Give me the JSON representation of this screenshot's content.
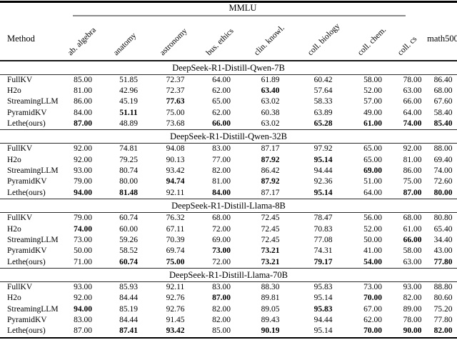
{
  "table": {
    "group_header": "MMLU",
    "method_header": "Method",
    "last_column_header": "math500",
    "mmlu_columns": [
      "ab. algebra",
      "anatomy",
      "astronomy",
      "bus. ethics",
      "clin. knowl.",
      "coll. biology",
      "coll. chem.",
      "coll. cs"
    ],
    "all_columns": [
      "Method",
      "ab. algebra",
      "anatomy",
      "astronomy",
      "bus. ethics",
      "clin. knowl.",
      "coll. biology",
      "coll. chem.",
      "coll. cs",
      "math500"
    ],
    "sections": [
      {
        "title": "DeepSeek-R1-Distill-Qwen-7B",
        "rows": [
          {
            "method": "FullKV",
            "values": [
              "85.00",
              "51.85",
              "72.37",
              "64.00",
              "61.89",
              "60.42",
              "58.00",
              "78.00",
              "86.40"
            ],
            "bold": [
              0,
              0,
              0,
              0,
              0,
              0,
              0,
              0,
              0
            ]
          },
          {
            "method": "H2o",
            "values": [
              "81.00",
              "42.96",
              "72.37",
              "62.00",
              "63.40",
              "57.64",
              "52.00",
              "63.00",
              "68.00"
            ],
            "bold": [
              0,
              0,
              0,
              0,
              1,
              0,
              0,
              0,
              0
            ]
          },
          {
            "method": "StreamingLLM",
            "values": [
              "86.00",
              "45.19",
              "77.63",
              "65.00",
              "63.02",
              "58.33",
              "57.00",
              "66.00",
              "67.60"
            ],
            "bold": [
              0,
              0,
              1,
              0,
              0,
              0,
              0,
              0,
              0
            ]
          },
          {
            "method": "PyramidKV",
            "values": [
              "84.00",
              "51.11",
              "75.00",
              "62.00",
              "60.38",
              "63.89",
              "49.00",
              "64.00",
              "58.40"
            ],
            "bold": [
              0,
              1,
              0,
              0,
              0,
              0,
              0,
              0,
              0
            ]
          },
          {
            "method": "Lethe(ours)",
            "values": [
              "87.00",
              "48.89",
              "73.68",
              "66.00",
              "63.02",
              "65.28",
              "61.00",
              "74.00",
              "85.40"
            ],
            "bold": [
              1,
              0,
              0,
              1,
              0,
              1,
              1,
              1,
              1
            ]
          }
        ]
      },
      {
        "title": "DeepSeek-R1-Distill-Qwen-32B",
        "rows": [
          {
            "method": "FullKV",
            "values": [
              "92.00",
              "74.81",
              "94.08",
              "83.00",
              "87.17",
              "97.92",
              "65.00",
              "92.00",
              "88.00"
            ],
            "bold": [
              0,
              0,
              0,
              0,
              0,
              0,
              0,
              0,
              0
            ]
          },
          {
            "method": "H2o",
            "values": [
              "92.00",
              "79.25",
              "90.13",
              "77.00",
              "87.92",
              "95.14",
              "65.00",
              "81.00",
              "69.40"
            ],
            "bold": [
              0,
              0,
              0,
              0,
              1,
              1,
              0,
              0,
              0
            ]
          },
          {
            "method": "StreamingLLM",
            "values": [
              "93.00",
              "80.74",
              "93.42",
              "82.00",
              "86.42",
              "94.44",
              "69.00",
              "86.00",
              "74.00"
            ],
            "bold": [
              0,
              0,
              0,
              0,
              0,
              0,
              1,
              0,
              0
            ]
          },
          {
            "method": "PyramidKV",
            "values": [
              "79.00",
              "80.00",
              "94.74",
              "81.00",
              "87.92",
              "92.36",
              "51.00",
              "75.00",
              "72.60"
            ],
            "bold": [
              0,
              0,
              1,
              0,
              1,
              0,
              0,
              0,
              0
            ]
          },
          {
            "method": "Lethe(ours)",
            "values": [
              "94.00",
              "81.48",
              "92.11",
              "84.00",
              "87.17",
              "95.14",
              "64.00",
              "87.00",
              "80.00"
            ],
            "bold": [
              1,
              1,
              0,
              1,
              0,
              1,
              0,
              1,
              1
            ]
          }
        ]
      },
      {
        "title": "DeepSeek-R1-Distill-Llama-8B",
        "rows": [
          {
            "method": "FullKV",
            "values": [
              "79.00",
              "60.74",
              "76.32",
              "68.00",
              "72.45",
              "78.47",
              "56.00",
              "68.00",
              "80.80"
            ],
            "bold": [
              0,
              0,
              0,
              0,
              0,
              0,
              0,
              0,
              0
            ]
          },
          {
            "method": "H2o",
            "values": [
              "74.00",
              "60.00",
              "67.11",
              "72.00",
              "72.45",
              "70.83",
              "52.00",
              "61.00",
              "65.40"
            ],
            "bold": [
              1,
              0,
              0,
              0,
              0,
              0,
              0,
              0,
              0
            ]
          },
          {
            "method": "StreamingLLM",
            "values": [
              "73.00",
              "59.26",
              "70.39",
              "69.00",
              "72.45",
              "77.08",
              "50.00",
              "66.00",
              "34.40"
            ],
            "bold": [
              0,
              0,
              0,
              0,
              0,
              0,
              0,
              1,
              0
            ]
          },
          {
            "method": "PyramidKV",
            "values": [
              "50.00",
              "58.52",
              "69.74",
              "73.00",
              "73.21",
              "74.31",
              "41.00",
              "58.00",
              "43.00"
            ],
            "bold": [
              0,
              0,
              0,
              1,
              1,
              0,
              0,
              0,
              0
            ]
          },
          {
            "method": "Lethe(ours)",
            "values": [
              "71.00",
              "60.74",
              "75.00",
              "72.00",
              "73.21",
              "79.17",
              "54.00",
              "63.00",
              "77.80"
            ],
            "bold": [
              0,
              1,
              1,
              0,
              1,
              1,
              1,
              0,
              1
            ]
          }
        ]
      },
      {
        "title": "DeepSeek-R1-Distill-Llama-70B",
        "rows": [
          {
            "method": "FullKV",
            "values": [
              "93.00",
              "85.93",
              "92.11",
              "83.00",
              "88.30",
              "95.83",
              "73.00",
              "93.00",
              "88.80"
            ],
            "bold": [
              0,
              0,
              0,
              0,
              0,
              0,
              0,
              0,
              0
            ]
          },
          {
            "method": "H2o",
            "values": [
              "92.00",
              "84.44",
              "92.76",
              "87.00",
              "89.81",
              "95.14",
              "70.00",
              "82.00",
              "80.60"
            ],
            "bold": [
              0,
              0,
              0,
              1,
              0,
              0,
              1,
              0,
              0
            ]
          },
          {
            "method": "StreamingLLM",
            "values": [
              "94.00",
              "85.19",
              "92.76",
              "82.00",
              "89.05",
              "95.83",
              "67.00",
              "89.00",
              "75.20"
            ],
            "bold": [
              1,
              0,
              0,
              0,
              0,
              1,
              0,
              0,
              0
            ]
          },
          {
            "method": "PyramidKV",
            "values": [
              "83.00",
              "84.44",
              "91.45",
              "82.00",
              "89.43",
              "94.44",
              "62.00",
              "78.00",
              "77.80"
            ],
            "bold": [
              0,
              0,
              0,
              0,
              0,
              0,
              0,
              0,
              0
            ]
          },
          {
            "method": "Lethe(ours)",
            "values": [
              "87.00",
              "87.41",
              "93.42",
              "85.00",
              "90.19",
              "95.14",
              "70.00",
              "90.00",
              "82.00"
            ],
            "bold": [
              0,
              1,
              1,
              0,
              1,
              0,
              1,
              1,
              1
            ]
          }
        ]
      }
    ]
  },
  "colors": {
    "text": "#000000",
    "thick_rule": "#000000",
    "thin_rule": "#2b2b2b",
    "cmidrule_gray": "#8c8c8c",
    "background": "#ffffff"
  }
}
